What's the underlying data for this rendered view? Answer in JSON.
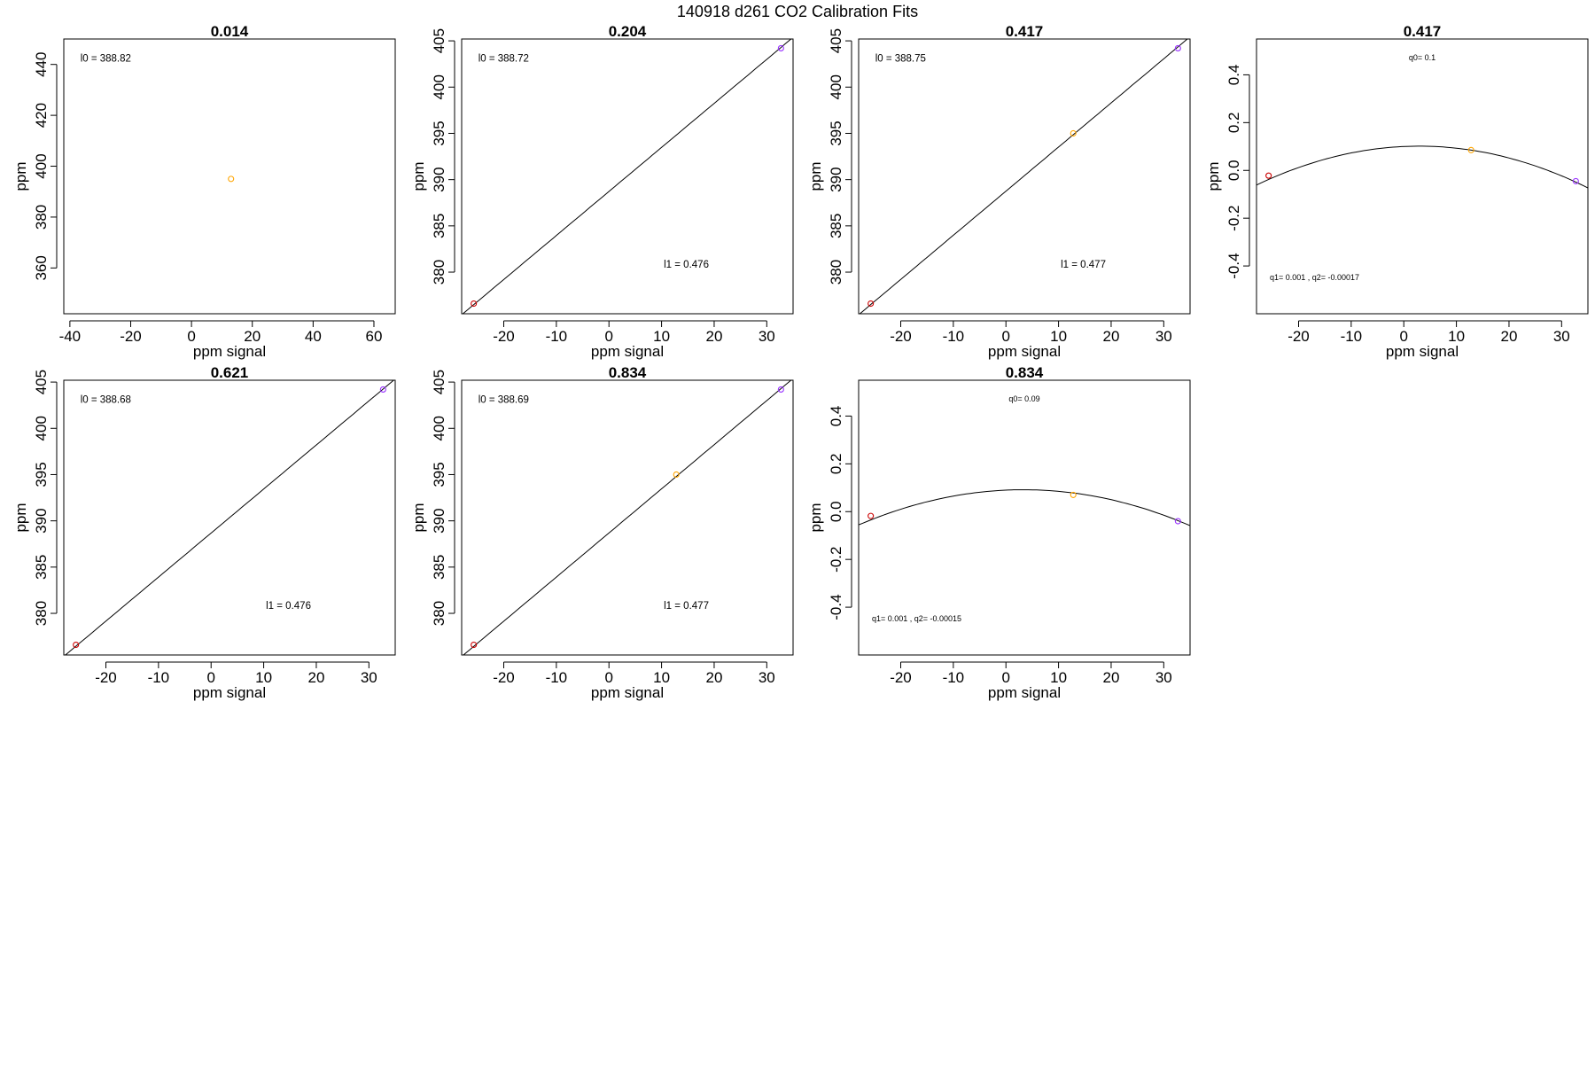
{
  "figure": {
    "suptitle": "140918   d261   CO2 Calibration Fits"
  },
  "chart_data": [
    {
      "type": "scatter",
      "title": "0.014",
      "xlabel": "ppm signal",
      "ylabel": "ppm",
      "xlim": [
        -42,
        67
      ],
      "ylim": [
        342,
        450
      ],
      "xticks": [
        -40,
        -20,
        0,
        20,
        40,
        60
      ],
      "yticks": [
        360,
        380,
        400,
        420,
        440
      ],
      "points": [
        {
          "x": 13,
          "y": 395,
          "color": "#ffa500"
        }
      ],
      "fit": null,
      "annotations": [
        "l0 =  388.82"
      ]
    },
    {
      "type": "scatter",
      "title": "0.204",
      "xlabel": "ppm signal",
      "ylabel": "ppm",
      "xlim": [
        -28,
        35
      ],
      "ylim": [
        375.5,
        405.2
      ],
      "xticks": [
        -20,
        -10,
        0,
        10,
        20,
        30
      ],
      "yticks": [
        380,
        385,
        390,
        395,
        400,
        405
      ],
      "points": [
        {
          "x": -25.7,
          "y": 376.6,
          "color": "#cc0000"
        },
        {
          "x": 32.7,
          "y": 404.2,
          "color": "#9933ff"
        }
      ],
      "fit": {
        "kind": "linear",
        "intercept": 388.72,
        "slope": 0.476
      },
      "annotations": [
        "l0 =  388.72",
        "l1 =  0.476"
      ]
    },
    {
      "type": "scatter",
      "title": "0.417",
      "xlabel": "ppm signal",
      "ylabel": "ppm",
      "xlim": [
        -28,
        35
      ],
      "ylim": [
        375.5,
        405.2
      ],
      "xticks": [
        -20,
        -10,
        0,
        10,
        20,
        30
      ],
      "yticks": [
        380,
        385,
        390,
        395,
        400,
        405
      ],
      "points": [
        {
          "x": -25.7,
          "y": 376.6,
          "color": "#cc0000"
        },
        {
          "x": 12.8,
          "y": 395,
          "color": "#ffa500"
        },
        {
          "x": 32.7,
          "y": 404.2,
          "color": "#9933ff"
        }
      ],
      "fit": {
        "kind": "linear",
        "intercept": 388.75,
        "slope": 0.477
      },
      "annotations": [
        "l0 =  388.75",
        "l1 =  0.477"
      ]
    },
    {
      "type": "scatter",
      "title": "0.417",
      "xlabel": "ppm signal",
      "ylabel": "ppm",
      "xlim": [
        -28,
        35
      ],
      "ylim": [
        -0.6,
        0.55
      ],
      "xticks": [
        -20,
        -10,
        0,
        10,
        20,
        30
      ],
      "yticks": [
        -0.4,
        -0.2,
        0.0,
        0.2,
        0.4
      ],
      "ytick_labels": [
        "-0.4",
        "-0.2",
        "0.0",
        "0.2",
        "0.4"
      ],
      "points": [
        {
          "x": -25.7,
          "y": -0.022,
          "color": "#cc0000"
        },
        {
          "x": 12.8,
          "y": 0.085,
          "color": "#ffa500"
        },
        {
          "x": 32.7,
          "y": -0.045,
          "color": "#9933ff"
        }
      ],
      "fit": {
        "kind": "quadratic",
        "q0": 0.1,
        "q1": 0.001,
        "q2": -0.00017
      },
      "annotations": [
        "q0= 0.1",
        "q1= 0.001 , q2= -0.00017"
      ]
    },
    {
      "type": "scatter",
      "title": "0.621",
      "xlabel": "ppm signal",
      "ylabel": "ppm",
      "xlim": [
        -28,
        35
      ],
      "ylim": [
        375.5,
        405.2
      ],
      "xticks": [
        -20,
        -10,
        0,
        10,
        20,
        30
      ],
      "yticks": [
        380,
        385,
        390,
        395,
        400,
        405
      ],
      "points": [
        {
          "x": -25.7,
          "y": 376.6,
          "color": "#cc0000"
        },
        {
          "x": 32.7,
          "y": 404.2,
          "color": "#9933ff"
        }
      ],
      "fit": {
        "kind": "linear",
        "intercept": 388.68,
        "slope": 0.476
      },
      "annotations": [
        "l0 =  388.68",
        "l1 =  0.476"
      ]
    },
    {
      "type": "scatter",
      "title": "0.834",
      "xlabel": "ppm signal",
      "ylabel": "ppm",
      "xlim": [
        -28,
        35
      ],
      "ylim": [
        375.5,
        405.2
      ],
      "xticks": [
        -20,
        -10,
        0,
        10,
        20,
        30
      ],
      "yticks": [
        380,
        385,
        390,
        395,
        400,
        405
      ],
      "points": [
        {
          "x": -25.7,
          "y": 376.6,
          "color": "#cc0000"
        },
        {
          "x": 12.8,
          "y": 395,
          "color": "#ffa500"
        },
        {
          "x": 32.7,
          "y": 404.2,
          "color": "#9933ff"
        }
      ],
      "fit": {
        "kind": "linear",
        "intercept": 388.69,
        "slope": 0.477
      },
      "annotations": [
        "l0 =  388.69",
        "l1 =  0.477"
      ]
    },
    {
      "type": "scatter",
      "title": "0.834",
      "xlabel": "ppm signal",
      "ylabel": "ppm",
      "xlim": [
        -28,
        35
      ],
      "ylim": [
        -0.6,
        0.55
      ],
      "xticks": [
        -20,
        -10,
        0,
        10,
        20,
        30
      ],
      "yticks": [
        -0.4,
        -0.2,
        0.0,
        0.2,
        0.4
      ],
      "ytick_labels": [
        "-0.4",
        "-0.2",
        "0.0",
        "0.2",
        "0.4"
      ],
      "points": [
        {
          "x": -25.7,
          "y": -0.018,
          "color": "#cc0000"
        },
        {
          "x": 12.8,
          "y": 0.07,
          "color": "#ffa500"
        },
        {
          "x": 32.7,
          "y": -0.04,
          "color": "#9933ff"
        }
      ],
      "fit": {
        "kind": "quadratic",
        "q0": 0.09,
        "q1": 0.001,
        "q2": -0.00015
      },
      "annotations": [
        "q0= 0.09",
        "q1= 0.001 , q2= -0.00015"
      ]
    }
  ]
}
